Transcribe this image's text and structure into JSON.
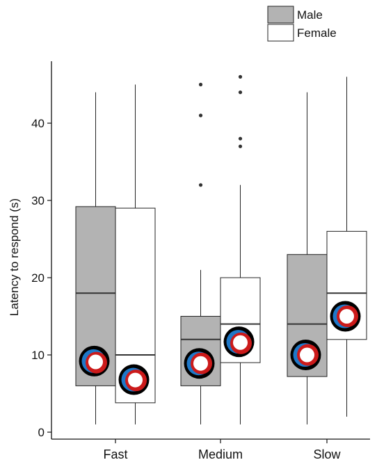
{
  "chart_data": {
    "type": "boxplot",
    "ylabel": "Latency to respond (s)",
    "xlabel": "",
    "ylim": [
      0,
      48
    ],
    "yticks": [
      0,
      10,
      20,
      30,
      40
    ],
    "grid": false,
    "legend_position": "top-right",
    "categories": [
      "Fast",
      "Medium",
      "Slow"
    ],
    "series": [
      {
        "name": "Male",
        "color": "#b3b3b3",
        "boxes": [
          {
            "category": "Fast",
            "whisker_low": 1,
            "q1": 6,
            "median": 18,
            "q3": 29.2,
            "whisker_high": 44,
            "outliers": [],
            "marker": {
              "blue": 9.2,
              "red": 9.0
            }
          },
          {
            "category": "Medium",
            "whisker_low": 1,
            "q1": 6,
            "median": 12,
            "q3": 15,
            "whisker_high": 21,
            "outliers": [
              32,
              41,
              45
            ],
            "marker": {
              "blue": 8.9,
              "red": 8.9
            }
          },
          {
            "category": "Slow",
            "whisker_low": 1,
            "q1": 7.2,
            "median": 14,
            "q3": 23,
            "whisker_high": 44,
            "outliers": [],
            "marker": {
              "blue": 10.0,
              "red": 10.0
            }
          }
        ]
      },
      {
        "name": "Female",
        "color": "#ffffff",
        "boxes": [
          {
            "category": "Fast",
            "whisker_low": 1,
            "q1": 3.8,
            "median": 10,
            "q3": 29,
            "whisker_high": 45,
            "outliers": [],
            "marker": {
              "blue": 6.8,
              "red": 6.7
            }
          },
          {
            "category": "Medium",
            "whisker_low": 1,
            "q1": 9,
            "median": 14,
            "q3": 20,
            "whisker_high": 32,
            "outliers": [
              37,
              38,
              44,
              46
            ],
            "marker": {
              "blue": 11.7,
              "red": 11.5
            }
          },
          {
            "category": "Slow",
            "whisker_low": 2,
            "q1": 12,
            "median": 18,
            "q3": 26,
            "whisker_high": 46,
            "outliers": [],
            "marker": {
              "blue": 15.0,
              "red": 15.0
            }
          }
        ]
      }
    ],
    "marker_colors": {
      "outer": "#000000",
      "blue": "#1f78c8",
      "red": "#cc1a1a"
    }
  }
}
